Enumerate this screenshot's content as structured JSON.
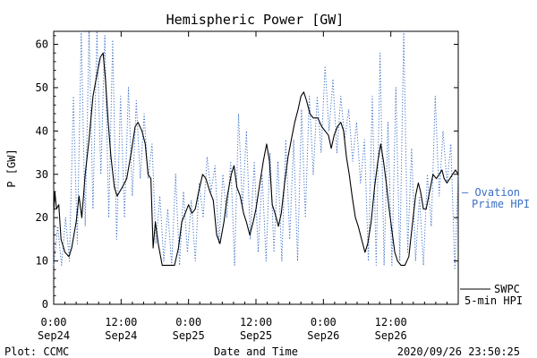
{
  "chart_data": {
    "type": "line",
    "title": "Hemispheric Power [GW]",
    "xlabel": "Date and Time",
    "ylabel": "P [GW]",
    "ylim": [
      0,
      63
    ],
    "xlim_hours": [
      0,
      72
    ],
    "yticks": [
      0,
      10,
      20,
      30,
      40,
      50,
      60
    ],
    "xticks": [
      {
        "hour": 0,
        "time": "0:00",
        "date": "Sep24"
      },
      {
        "hour": 12,
        "time": "12:00",
        "date": "Sep24"
      },
      {
        "hour": 24,
        "time": "0:00",
        "date": "Sep25"
      },
      {
        "hour": 36,
        "time": "12:00",
        "date": "Sep25"
      },
      {
        "hour": 48,
        "time": "0:00",
        "date": "Sep26"
      },
      {
        "hour": 60,
        "time": "12:00",
        "date": "Sep26"
      }
    ],
    "grid": false,
    "series": [
      {
        "name": "Ovation Prime HPI",
        "legend_lines": [
          "— Ovation",
          "Prime HPI"
        ],
        "style": "dotted",
        "color": "#3a6fc4",
        "points": [
          [
            0.0,
            9
          ],
          [
            0.7,
            18
          ],
          [
            1.4,
            9
          ],
          [
            2.1,
            20
          ],
          [
            2.8,
            10
          ],
          [
            3.5,
            48
          ],
          [
            4.2,
            14
          ],
          [
            4.9,
            63
          ],
          [
            5.6,
            18
          ],
          [
            6.3,
            63
          ],
          [
            7.0,
            22
          ],
          [
            7.7,
            63
          ],
          [
            8.4,
            30
          ],
          [
            9.1,
            62
          ],
          [
            9.8,
            20
          ],
          [
            10.5,
            61
          ],
          [
            11.2,
            15
          ],
          [
            11.9,
            48
          ],
          [
            12.6,
            20
          ],
          [
            13.3,
            50
          ],
          [
            14.0,
            25
          ],
          [
            14.7,
            47
          ],
          [
            15.4,
            29
          ],
          [
            16.1,
            44
          ],
          [
            16.8,
            29
          ],
          [
            17.5,
            37
          ],
          [
            18.2,
            14
          ],
          [
            18.9,
            25
          ],
          [
            19.6,
            10
          ],
          [
            20.3,
            22
          ],
          [
            21.0,
            9
          ],
          [
            21.7,
            30
          ],
          [
            22.4,
            9
          ],
          [
            23.1,
            26
          ],
          [
            23.8,
            12
          ],
          [
            24.5,
            24
          ],
          [
            25.2,
            10
          ],
          [
            25.9,
            28
          ],
          [
            26.6,
            20
          ],
          [
            27.3,
            34
          ],
          [
            28.0,
            26
          ],
          [
            28.7,
            32
          ],
          [
            29.4,
            14
          ],
          [
            30.1,
            30
          ],
          [
            30.8,
            20
          ],
          [
            31.5,
            33
          ],
          [
            32.2,
            9
          ],
          [
            32.9,
            44
          ],
          [
            33.6,
            22
          ],
          [
            34.3,
            40
          ],
          [
            35.0,
            15
          ],
          [
            35.7,
            33
          ],
          [
            36.4,
            12
          ],
          [
            37.1,
            30
          ],
          [
            37.8,
            10
          ],
          [
            38.5,
            35
          ],
          [
            39.2,
            12
          ],
          [
            39.9,
            33
          ],
          [
            40.6,
            10
          ],
          [
            41.3,
            38
          ],
          [
            42.0,
            15
          ],
          [
            42.7,
            38
          ],
          [
            43.4,
            10
          ],
          [
            44.1,
            45
          ],
          [
            44.8,
            20
          ],
          [
            45.5,
            48
          ],
          [
            46.2,
            30
          ],
          [
            46.9,
            48
          ],
          [
            47.6,
            35
          ],
          [
            48.3,
            55
          ],
          [
            49.0,
            40
          ],
          [
            49.7,
            52
          ],
          [
            50.4,
            35
          ],
          [
            51.1,
            48
          ],
          [
            51.8,
            38
          ],
          [
            52.5,
            45
          ],
          [
            53.2,
            33
          ],
          [
            53.9,
            42
          ],
          [
            54.6,
            28
          ],
          [
            55.3,
            38
          ],
          [
            56.0,
            10
          ],
          [
            56.7,
            48
          ],
          [
            57.4,
            9
          ],
          [
            58.1,
            58
          ],
          [
            58.8,
            9
          ],
          [
            59.5,
            42
          ],
          [
            60.2,
            9
          ],
          [
            60.9,
            50
          ],
          [
            61.6,
            10
          ],
          [
            62.3,
            63
          ],
          [
            63.0,
            12
          ],
          [
            63.7,
            36
          ],
          [
            64.4,
            10
          ],
          [
            65.1,
            25
          ],
          [
            65.8,
            9
          ],
          [
            66.5,
            30
          ],
          [
            67.2,
            18
          ],
          [
            67.9,
            48
          ],
          [
            68.6,
            25
          ],
          [
            69.3,
            40
          ],
          [
            70.0,
            28
          ],
          [
            70.7,
            37
          ],
          [
            71.4,
            8
          ],
          [
            72.0,
            30
          ]
        ]
      },
      {
        "name": "SWPC 5-min HPI",
        "legend_lines": [
          "SWPC",
          "5-min HPI"
        ],
        "style": "solid",
        "color": "#000000",
        "points": [
          [
            0.0,
            21
          ],
          [
            0.2,
            26
          ],
          [
            0.5,
            22
          ],
          [
            0.9,
            23
          ],
          [
            1.3,
            15
          ],
          [
            2.0,
            12
          ],
          [
            2.7,
            11
          ],
          [
            3.2,
            13
          ],
          [
            4.0,
            19
          ],
          [
            4.5,
            25
          ],
          [
            5.0,
            20
          ],
          [
            5.6,
            30
          ],
          [
            6.3,
            38
          ],
          [
            7.0,
            48
          ],
          [
            7.7,
            53
          ],
          [
            8.3,
            57
          ],
          [
            8.8,
            58
          ],
          [
            9.2,
            52
          ],
          [
            9.7,
            42
          ],
          [
            10.2,
            34
          ],
          [
            10.8,
            27
          ],
          [
            11.3,
            25
          ],
          [
            12.2,
            27
          ],
          [
            13.0,
            29
          ],
          [
            13.8,
            35
          ],
          [
            14.5,
            41
          ],
          [
            15.0,
            42
          ],
          [
            15.7,
            40
          ],
          [
            16.3,
            37
          ],
          [
            16.8,
            30
          ],
          [
            17.3,
            29
          ],
          [
            17.7,
            13
          ],
          [
            18.1,
            19
          ],
          [
            18.6,
            14
          ],
          [
            19.3,
            9
          ],
          [
            20.5,
            9
          ],
          [
            21.5,
            9
          ],
          [
            22.2,
            13
          ],
          [
            22.8,
            19
          ],
          [
            23.4,
            21
          ],
          [
            24.0,
            23
          ],
          [
            24.6,
            21
          ],
          [
            25.2,
            22
          ],
          [
            25.8,
            26
          ],
          [
            26.5,
            30
          ],
          [
            27.1,
            29
          ],
          [
            27.8,
            26
          ],
          [
            28.4,
            24
          ],
          [
            29.0,
            16
          ],
          [
            29.6,
            14
          ],
          [
            30.3,
            19
          ],
          [
            30.9,
            25
          ],
          [
            31.6,
            30
          ],
          [
            32.1,
            32
          ],
          [
            32.6,
            27
          ],
          [
            33.2,
            25
          ],
          [
            33.8,
            21
          ],
          [
            34.3,
            19
          ],
          [
            34.9,
            16
          ],
          [
            35.5,
            19
          ],
          [
            36.0,
            22
          ],
          [
            36.7,
            28
          ],
          [
            37.3,
            33
          ],
          [
            37.9,
            37
          ],
          [
            38.4,
            33
          ],
          [
            38.9,
            23
          ],
          [
            39.4,
            21
          ],
          [
            40.0,
            18
          ],
          [
            40.5,
            21
          ],
          [
            41.1,
            28
          ],
          [
            41.7,
            34
          ],
          [
            42.3,
            38
          ],
          [
            42.9,
            42
          ],
          [
            43.5,
            45
          ],
          [
            44.0,
            48
          ],
          [
            44.5,
            49
          ],
          [
            45.0,
            47
          ],
          [
            45.6,
            44
          ],
          [
            46.2,
            43
          ],
          [
            47.0,
            43
          ],
          [
            47.7,
            41
          ],
          [
            48.3,
            40
          ],
          [
            48.9,
            39
          ],
          [
            49.4,
            36
          ],
          [
            49.9,
            39
          ],
          [
            50.5,
            41
          ],
          [
            51.1,
            42
          ],
          [
            51.6,
            40
          ],
          [
            52.1,
            34
          ],
          [
            52.6,
            30
          ],
          [
            53.1,
            25
          ],
          [
            53.7,
            20
          ],
          [
            54.2,
            18
          ],
          [
            54.8,
            15
          ],
          [
            55.4,
            12
          ],
          [
            55.9,
            14
          ],
          [
            56.5,
            19
          ],
          [
            57.1,
            27
          ],
          [
            57.7,
            33
          ],
          [
            58.2,
            37
          ],
          [
            58.7,
            33
          ],
          [
            59.2,
            28
          ],
          [
            59.7,
            22
          ],
          [
            60.2,
            17
          ],
          [
            60.7,
            12
          ],
          [
            61.2,
            10
          ],
          [
            61.8,
            9
          ],
          [
            62.5,
            9
          ],
          [
            63.2,
            11
          ],
          [
            63.8,
            18
          ],
          [
            64.4,
            25
          ],
          [
            64.9,
            28
          ],
          [
            65.3,
            26
          ],
          [
            65.8,
            22
          ],
          [
            66.3,
            22
          ],
          [
            66.9,
            26
          ],
          [
            67.5,
            30
          ],
          [
            68.1,
            29
          ],
          [
            68.6,
            30
          ],
          [
            69.1,
            31
          ],
          [
            69.5,
            29
          ],
          [
            70.0,
            28
          ],
          [
            70.5,
            29
          ],
          [
            71.0,
            30
          ],
          [
            71.5,
            31
          ],
          [
            72.0,
            30
          ]
        ]
      }
    ]
  },
  "footer": {
    "left": "Plot: CCMC",
    "center": "Date and Time",
    "right": "2020/09/26 23:50:25"
  }
}
